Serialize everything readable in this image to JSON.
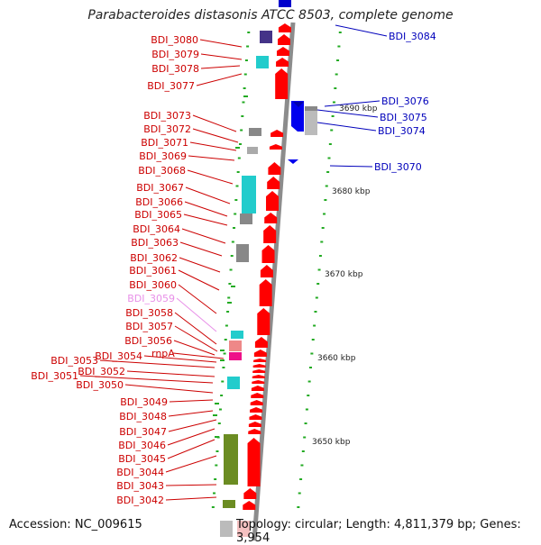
{
  "title": "Parabacteroides distasonis ATCC 8503, complete genome",
  "footer": {
    "accession": "Accession: NC_009615",
    "summary": "Topology: circular; Length: 4,811,379 bp; Genes: 3,954"
  },
  "scale_labels": [
    "3690 kbp",
    "3680 kbp",
    "3670 kbp",
    "3660 kbp",
    "3650 kbp"
  ],
  "colors": {
    "left_labels": "#cc0000",
    "right_labels": "#0000bb",
    "pseudo_label": "#e890e8",
    "forward_gene": "#ff0000",
    "reverse_gene": "#0000ee",
    "cyan_block": "#22cccc",
    "gray_block": "#888888",
    "olive_block": "#6b8c22",
    "navy_block": "#443388",
    "pink_block": "#ee8888",
    "magenta_block": "#ee1188",
    "dotted_track": "#22aa22",
    "main_track": "#888888"
  },
  "left_genes": [
    "BDI_3080",
    "BDI_3079",
    "BDI_3078",
    "BDI_3077",
    "BDI_3073",
    "BDI_3072",
    "BDI_3071",
    "BDI_3069",
    "BDI_3068",
    "BDI_3067",
    "BDI_3066",
    "BDI_3065",
    "BDI_3064",
    "BDI_3063",
    "BDI_3062",
    "BDI_3061",
    "BDI_3060",
    "BDI_3059",
    "BDI_3058",
    "BDI_3057",
    "BDI_3056",
    "BDI_3054",
    "rnpA",
    "BDI_3053",
    "BDI_3052",
    "BDI_3051",
    "BDI_3050",
    "BDI_3049",
    "BDI_3048",
    "BDI_3047",
    "BDI_3046",
    "BDI_3045",
    "BDI_3044",
    "BDI_3043",
    "BDI_3042"
  ],
  "right_genes": [
    "BDI_3084",
    "BDI_3076",
    "BDI_3075",
    "BDI_3074",
    "BDI_3070"
  ]
}
